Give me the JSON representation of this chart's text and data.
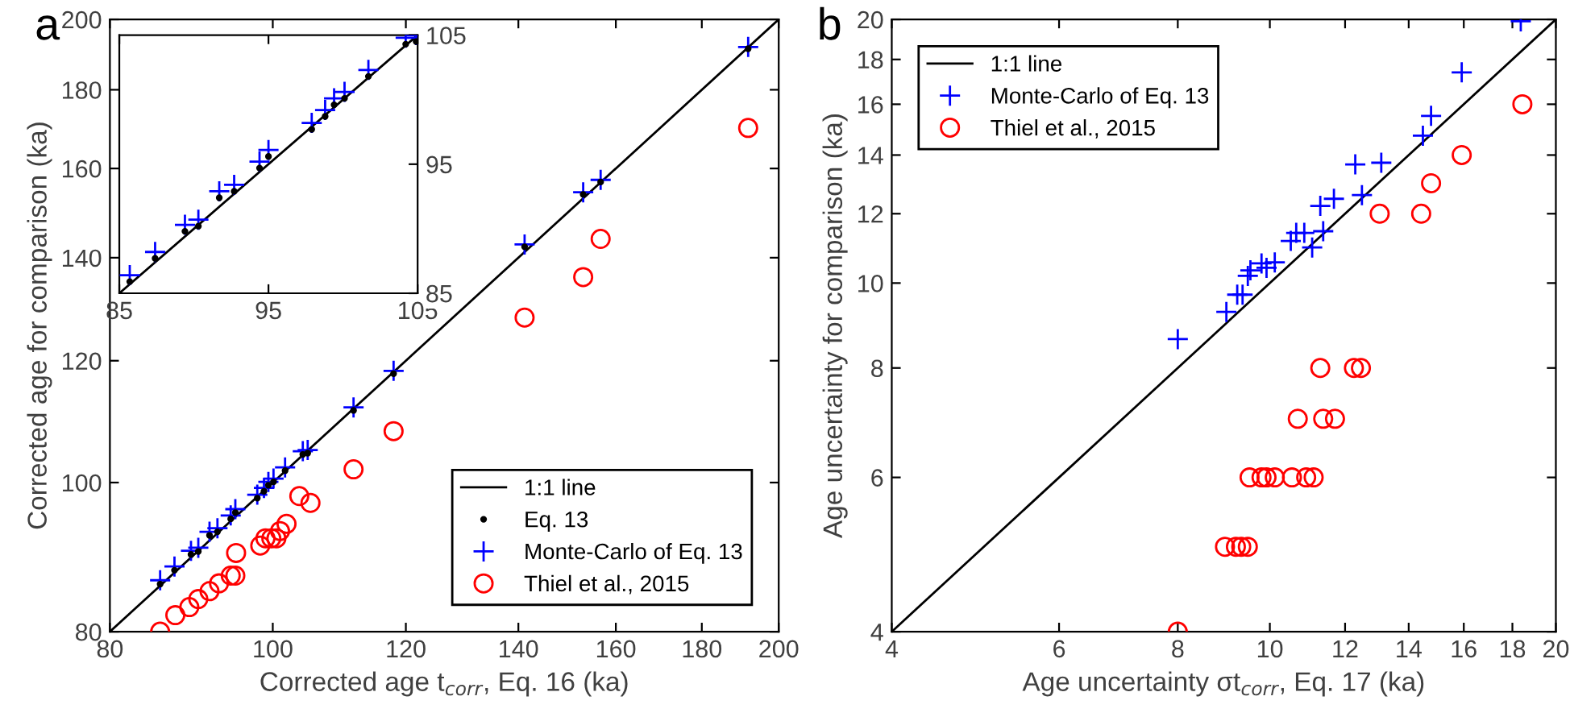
{
  "chart_data": [
    {
      "type": "scatter",
      "xlabel": "Corrected age t$_{corr}$, Eq. 16 (ka)",
      "ylabel": "Corrected age for comparison (ka)",
      "annotations": [
        "a"
      ],
      "log": "xy",
      "xlim": [
        80,
        200
      ],
      "ylim": [
        80,
        200
      ],
      "xticks": [
        80,
        100,
        120,
        140,
        160,
        180,
        200
      ],
      "yticks": [
        80,
        100,
        120,
        140,
        160,
        180,
        200
      ],
      "legend": "bottom right",
      "series": [
        {
          "name": "1:1 line",
          "type": "line",
          "color": "#000000",
          "marker": "none",
          "line_style": "solid",
          "x": [
            80,
            200
          ],
          "values": [
            80,
            200
          ]
        },
        {
          "name": "Eq. 13",
          "color": "#000000",
          "marker": "point",
          "x": [
            85.7,
            87.4,
            89.4,
            90.3,
            91.7,
            92.7,
            94.4,
            95.0,
            97.9,
            98.8,
            99.4,
            100.1,
            101.7,
            104.2,
            104.9,
            111.7,
            118.0,
            141.2,
            153.0,
            156.7,
            191.8
          ],
          "values": [
            85.9,
            87.7,
            89.8,
            90.2,
            92.4,
            92.9,
            94.7,
            95.6,
            97.7,
            98.7,
            99.6,
            100.1,
            101.8,
            104.3,
            104.5,
            111.4,
            117.7,
            142.3,
            153.9,
            156.8,
            191.4
          ]
        },
        {
          "name": "Monte-Carlo of Eq. 13",
          "color": "#0000ff",
          "marker": "cross",
          "x": [
            85.7,
            87.4,
            89.4,
            90.3,
            91.7,
            92.7,
            94.4,
            95.0,
            97.9,
            98.8,
            99.4,
            100.1,
            101.7,
            104.2,
            104.9,
            111.7,
            118.0,
            141.2,
            153.0,
            156.7,
            191.8
          ],
          "values": [
            86.4,
            88.2,
            90.3,
            90.7,
            92.9,
            93.4,
            95.2,
            96.1,
            98.2,
            99.2,
            100.1,
            100.6,
            102.3,
            104.8,
            105.0,
            111.9,
            118.2,
            142.8,
            154.4,
            157.3,
            191.9
          ]
        },
        {
          "name": "Thiel et al., 2015",
          "color": "#ff0000",
          "marker": "circle",
          "x": [
            85.7,
            87.5,
            89.2,
            90.3,
            91.7,
            92.9,
            94.4,
            95.0,
            95.1,
            98.3,
            99.0,
            99.8,
            100.5,
            101.0,
            101.9,
            103.7,
            105.3,
            111.7,
            118.0,
            141.2,
            153.0,
            156.7,
            191.8
          ],
          "values": [
            80,
            82,
            83,
            84,
            85,
            86,
            87,
            87,
            90,
            91,
            92,
            92,
            92,
            93,
            94,
            98,
            97,
            102,
            108,
            128,
            136,
            144,
            170
          ]
        }
      ]
    },
    {
      "type": "scatter",
      "xlim": [
        85,
        105
      ],
      "ylim": [
        85,
        105
      ],
      "xticks": [
        85,
        95,
        105
      ],
      "yticks": [
        85,
        95,
        105
      ],
      "series": [
        {
          "type": "line",
          "color": "#000000",
          "marker": "none",
          "line_style": "solid",
          "x": [
            85,
            105
          ],
          "values": [
            85,
            105
          ]
        },
        {
          "color": "#000000",
          "marker": "point",
          "x": [
            85.7,
            87.4,
            89.4,
            90.3,
            91.7,
            92.7,
            94.4,
            95.0,
            97.9,
            98.8,
            99.4,
            100.1,
            101.7,
            104.2,
            104.9
          ],
          "values": [
            85.9,
            87.7,
            89.8,
            90.2,
            92.4,
            92.9,
            94.7,
            95.6,
            97.7,
            98.7,
            99.6,
            100.1,
            101.8,
            104.3,
            104.5
          ]
        },
        {
          "color": "#0000ff",
          "marker": "cross",
          "x": [
            85.7,
            87.4,
            89.4,
            90.3,
            91.7,
            92.7,
            94.4,
            95.0,
            97.9,
            98.8,
            99.4,
            100.1,
            101.7,
            104.2,
            104.9
          ],
          "values": [
            86.4,
            88.2,
            90.3,
            90.7,
            92.9,
            93.4,
            95.2,
            96.1,
            98.2,
            99.2,
            100.1,
            100.6,
            102.3,
            104.8,
            105.0
          ]
        }
      ]
    },
    {
      "type": "scatter",
      "xlabel": "Age uncertainty σt$_{corr}$, Eq. 17 (ka)",
      "ylabel": "Age uncertainty for comparison (ka)",
      "annotations": [
        "b"
      ],
      "log": "xy",
      "xlim": [
        4,
        20
      ],
      "ylim": [
        4,
        20
      ],
      "xticks": [
        4,
        6,
        8,
        10,
        12,
        14,
        16,
        18,
        20
      ],
      "yticks": [
        4,
        6,
        8,
        10,
        12,
        14,
        16,
        18,
        20
      ],
      "legend": "top left",
      "series": [
        {
          "name": "1:1 line",
          "type": "line",
          "color": "#000000",
          "marker": "none",
          "line_style": "solid",
          "x": [
            4,
            20
          ],
          "values": [
            4,
            20
          ]
        },
        {
          "name": "Monte-Carlo of Eq. 13",
          "color": "#0000ff",
          "marker": "cross",
          "x": [
            8.0,
            9.0,
            9.24,
            9.36,
            9.48,
            9.54,
            9.8,
            9.92,
            10.12,
            10.52,
            10.66,
            10.87,
            11.08,
            11.3,
            11.38,
            11.68,
            12.3,
            12.5,
            13.1,
            14.49,
            14.78,
            15.92,
            18.37
          ],
          "values": [
            8.63,
            9.27,
            9.7,
            9.7,
            10.19,
            10.34,
            10.53,
            10.41,
            10.56,
            11.17,
            11.41,
            11.41,
            10.98,
            12.25,
            11.46,
            12.48,
            13.66,
            12.6,
            13.72,
            14.73,
            15.52,
            17.4,
            19.9
          ]
        },
        {
          "name": "Thiel et al., 2015",
          "color": "#ff0000",
          "marker": "circle",
          "x": [
            8.0,
            8.97,
            9.21,
            9.33,
            9.48,
            9.52,
            9.8,
            9.92,
            10.12,
            10.55,
            10.92,
            11.12,
            10.7,
            11.38,
            11.71,
            11.3,
            12.26,
            12.47,
            13.05,
            14.43,
            14.78,
            15.92,
            18.44
          ],
          "values": [
            4,
            5,
            5,
            5,
            5,
            6,
            6,
            6,
            6,
            6,
            6,
            6,
            7,
            7,
            7,
            8,
            8,
            8,
            12,
            12,
            13,
            14,
            16
          ]
        }
      ]
    }
  ]
}
